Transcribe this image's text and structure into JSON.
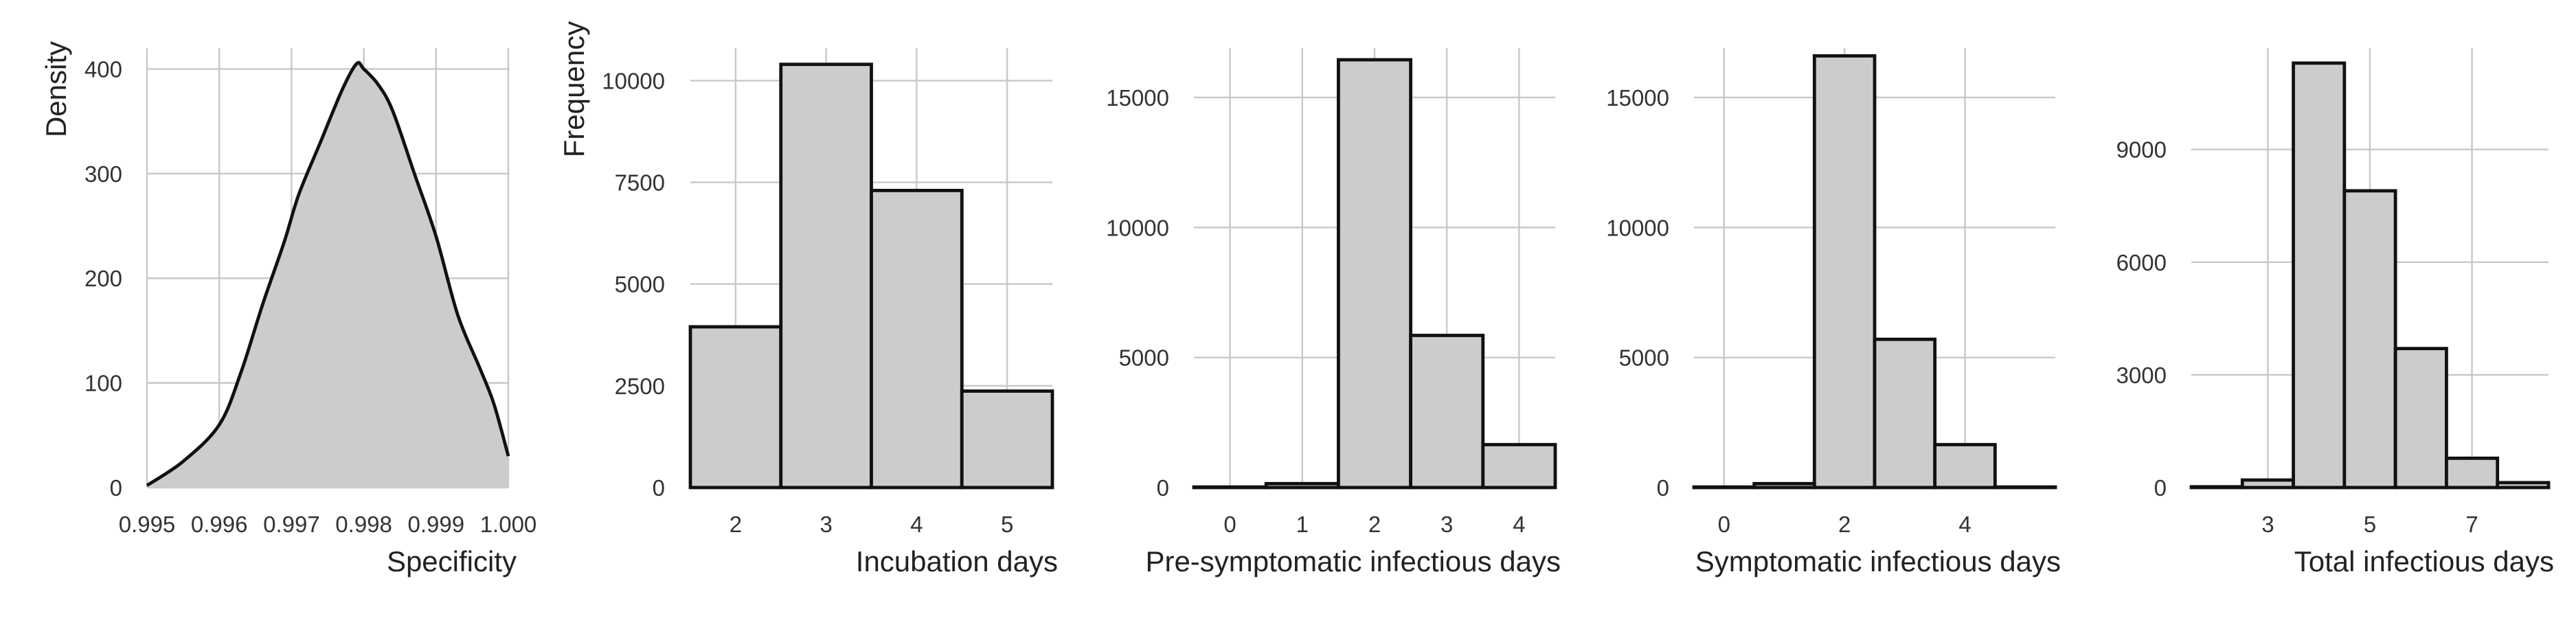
{
  "chart_data": [
    {
      "type": "area",
      "xlabel": "Specificity",
      "ylabel": "Density",
      "xlim": [
        0.995,
        1.0
      ],
      "ylim": [
        0,
        420
      ],
      "grid": true,
      "x_ticks": [
        "0.995",
        "0.996",
        "0.997",
        "0.998",
        "0.999",
        "1.000"
      ],
      "y_ticks": [
        "0",
        "100",
        "200",
        "300",
        "400"
      ],
      "x": [
        0.995,
        0.9955,
        0.996,
        0.9963,
        0.9966,
        0.9969,
        0.9971,
        0.9974,
        0.9977,
        0.9979,
        0.998,
        0.9982,
        0.9984,
        0.9987,
        0.999,
        0.9993,
        0.9996,
        0.9998,
        1.0
      ],
      "y": [
        2,
        25,
        60,
        110,
        175,
        235,
        280,
        330,
        380,
        405,
        400,
        385,
        360,
        300,
        240,
        165,
        115,
        80,
        30
      ]
    },
    {
      "type": "bar",
      "xlabel": "Incubation days",
      "ylabel": "Frequency",
      "xlim": [
        1.5,
        5.5
      ],
      "ylim": [
        0,
        10800
      ],
      "grid": true,
      "x_ticks": [
        "2",
        "3",
        "4",
        "5"
      ],
      "y_ticks": [
        "0",
        "2500",
        "5000",
        "7500",
        "10000"
      ],
      "categories": [
        2,
        3,
        4,
        5
      ],
      "values": [
        3950,
        10400,
        7300,
        2370
      ]
    },
    {
      "type": "bar",
      "xlabel": "Pre-symptomatic infectious days",
      "ylabel": "",
      "xlim": [
        -0.5,
        4.5
      ],
      "ylim": [
        0,
        16900
      ],
      "grid": true,
      "x_ticks": [
        "0",
        "1",
        "2",
        "3",
        "4"
      ],
      "y_ticks": [
        "0",
        "5000",
        "10000",
        "15000"
      ],
      "categories": [
        0,
        1,
        2,
        3,
        4
      ],
      "values": [
        20,
        150,
        16450,
        5850,
        1650
      ]
    },
    {
      "type": "bar",
      "xlabel": "Symptomatic infectious days",
      "ylabel": "",
      "xlim": [
        -0.5,
        5.5
      ],
      "ylim": [
        0,
        16900
      ],
      "grid": true,
      "x_ticks": [
        "0",
        "2",
        "4"
      ],
      "y_ticks": [
        "0",
        "5000",
        "10000",
        "15000"
      ],
      "categories": [
        0,
        1,
        2,
        3,
        4,
        5
      ],
      "values": [
        20,
        150,
        16600,
        5700,
        1650,
        20
      ]
    },
    {
      "type": "bar",
      "xlabel": "Total infectious days",
      "ylabel": "",
      "xlim": [
        1.5,
        8.5
      ],
      "ylim": [
        0,
        11700
      ],
      "grid": true,
      "x_ticks": [
        "3",
        "5",
        "7"
      ],
      "y_ticks": [
        "0",
        "3000",
        "6000",
        "9000"
      ],
      "categories": [
        2,
        3,
        4,
        5,
        6,
        7,
        8
      ],
      "values": [
        20,
        200,
        11300,
        7900,
        3700,
        780,
        130
      ]
    }
  ]
}
